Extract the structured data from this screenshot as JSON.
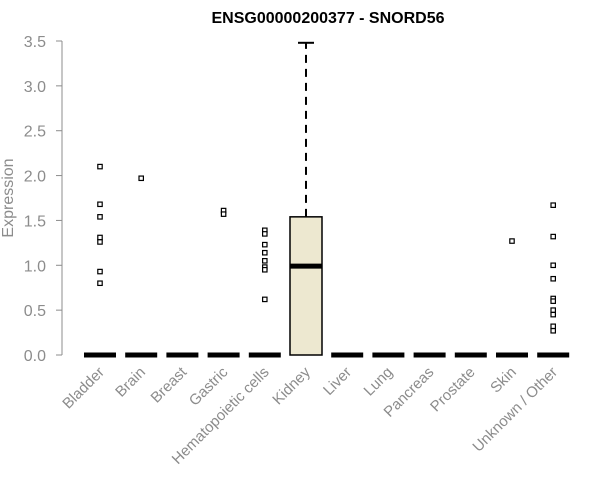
{
  "chart_data": {
    "type": "boxplot",
    "title": "ENSG00000200377 - SNORD56",
    "ylabel": "Expression",
    "xlabel": "",
    "ylim": [
      0,
      3.5
    ],
    "yticks": [
      "0.0",
      "0.5",
      "1.0",
      "1.5",
      "2.0",
      "2.5",
      "3.0",
      "3.5"
    ],
    "box_fill": "#ede8d0",
    "categories": [
      "Bladder",
      "Brain",
      "Breast",
      "Gastric",
      "Hematopoietic cells",
      "Kidney",
      "Liver",
      "Lung",
      "Pancreas",
      "Prostate",
      "Skin",
      "Unknown / Other"
    ],
    "boxes": [
      {
        "category": "Bladder",
        "q1": 0,
        "median": 0,
        "q3": 0,
        "whisker_low": 0,
        "whisker_high": 0,
        "outliers": [
          2.1,
          1.68,
          1.54,
          1.31,
          1.26,
          0.93,
          0.8
        ]
      },
      {
        "category": "Brain",
        "q1": 0,
        "median": 0,
        "q3": 0,
        "whisker_low": 0,
        "whisker_high": 0,
        "outliers": [
          1.97
        ]
      },
      {
        "category": "Breast",
        "q1": 0,
        "median": 0,
        "q3": 0,
        "whisker_low": 0,
        "whisker_high": 0,
        "outliers": []
      },
      {
        "category": "Gastric",
        "q1": 0,
        "median": 0,
        "q3": 0,
        "whisker_low": 0,
        "whisker_high": 0,
        "outliers": [
          1.61,
          1.57
        ]
      },
      {
        "category": "Hematopoietic cells",
        "q1": 0,
        "median": 0,
        "q3": 0,
        "whisker_low": 0,
        "whisker_high": 0,
        "outliers": [
          1.39,
          1.35,
          1.23,
          1.14,
          1.05,
          0.98,
          0.95,
          0.62
        ]
      },
      {
        "category": "Kidney",
        "q1": 0,
        "median": 0.99,
        "q3": 1.54,
        "whisker_low": 0,
        "whisker_high": 3.48,
        "outliers": []
      },
      {
        "category": "Liver",
        "q1": 0,
        "median": 0,
        "q3": 0,
        "whisker_low": 0,
        "whisker_high": 0,
        "outliers": []
      },
      {
        "category": "Lung",
        "q1": 0,
        "median": 0,
        "q3": 0,
        "whisker_low": 0,
        "whisker_high": 0,
        "outliers": []
      },
      {
        "category": "Pancreas",
        "q1": 0,
        "median": 0,
        "q3": 0,
        "whisker_low": 0,
        "whisker_high": 0,
        "outliers": []
      },
      {
        "category": "Prostate",
        "q1": 0,
        "median": 0,
        "q3": 0,
        "whisker_low": 0,
        "whisker_high": 0,
        "outliers": []
      },
      {
        "category": "Skin",
        "q1": 0,
        "median": 0,
        "q3": 0,
        "whisker_low": 0,
        "whisker_high": 0,
        "outliers": [
          1.27
        ]
      },
      {
        "category": "Unknown / Other",
        "q1": 0,
        "median": 0,
        "q3": 0,
        "whisker_low": 0,
        "whisker_high": 0,
        "outliers": [
          1.67,
          1.32,
          1.0,
          0.85,
          0.63,
          0.6,
          0.5,
          0.45,
          0.32,
          0.27
        ]
      }
    ],
    "grid": false,
    "legend": "none"
  }
}
